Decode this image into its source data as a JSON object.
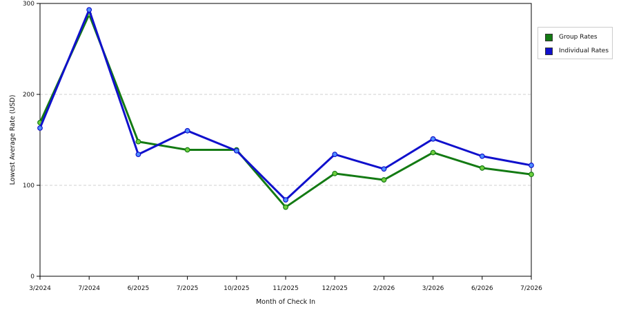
{
  "chart_data": {
    "type": "line",
    "xlabel": "Month of Check In",
    "ylabel": "Lowest Average Rate (USD)",
    "categories": [
      "3/2024",
      "7/2024",
      "6/2025",
      "7/2025",
      "10/2025",
      "11/2025",
      "12/2025",
      "2/2026",
      "3/2026",
      "6/2026",
      "7/2026"
    ],
    "ylim": [
      0,
      300
    ],
    "yticks": [
      0,
      100,
      200,
      300
    ],
    "grid": "horizontal dashed",
    "legend_position": "right",
    "series": [
      {
        "name": "Group Rates",
        "color": "#137a13",
        "values": [
          169,
          288,
          148,
          139,
          139,
          76,
          113,
          106,
          136,
          119,
          112
        ]
      },
      {
        "name": "Individual Rates",
        "color": "#1010cc",
        "values": [
          163,
          293,
          134,
          160,
          138,
          84,
          134,
          118,
          151,
          132,
          122
        ]
      }
    ]
  }
}
